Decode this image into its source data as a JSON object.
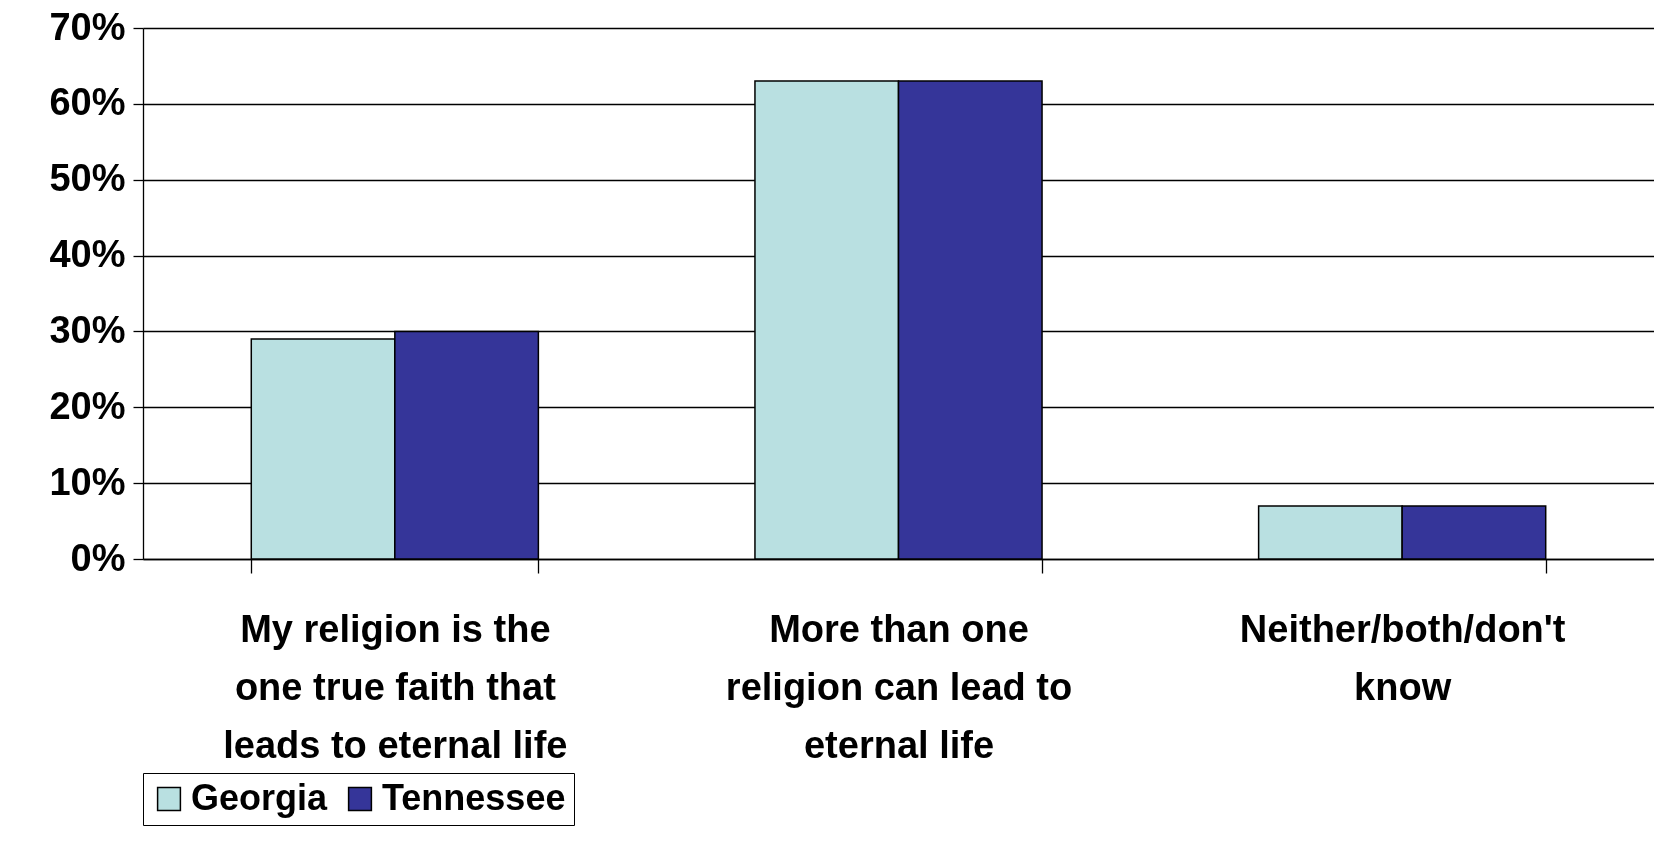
{
  "chart_data": {
    "type": "bar",
    "categories": [
      "My religion is the one true faith that leads to eternal life",
      "More than one religion can lead to eternal life",
      "Neither/both/don't know"
    ],
    "series": [
      {
        "name": "Georgia",
        "color": "#b9e0e1",
        "values": [
          29,
          63,
          7
        ]
      },
      {
        "name": "Tennessee",
        "color": "#353599",
        "values": [
          30,
          63,
          7
        ]
      }
    ],
    "ylim": [
      0,
      70
    ],
    "yticks": [
      {
        "value": 0,
        "label": "0%"
      },
      {
        "value": 10,
        "label": "10%"
      },
      {
        "value": 20,
        "label": "20%"
      },
      {
        "value": 30,
        "label": "30%"
      },
      {
        "value": 40,
        "label": "40%"
      },
      {
        "value": 50,
        "label": "50%"
      },
      {
        "value": 60,
        "label": "60%"
      },
      {
        "value": 70,
        "label": "70%"
      }
    ],
    "grid": "y",
    "legend": "bottom"
  }
}
